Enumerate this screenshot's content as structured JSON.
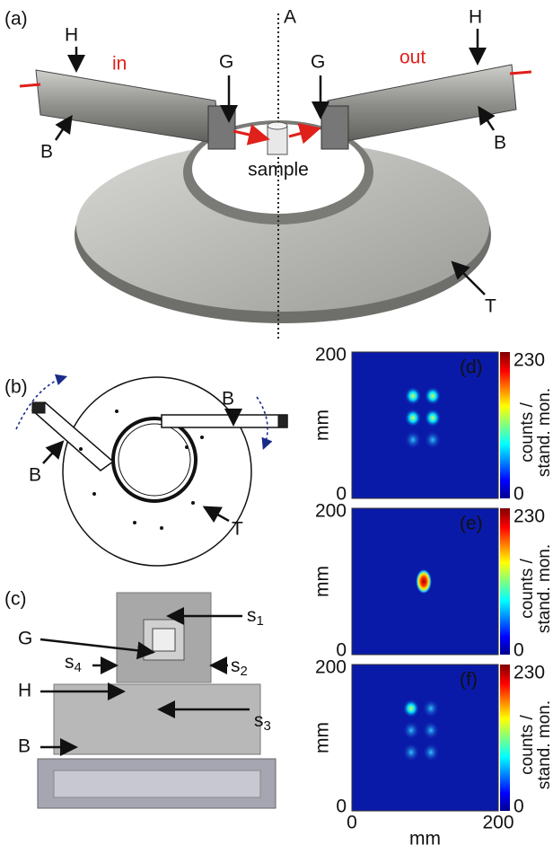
{
  "panel_a": {
    "label": "(a)",
    "labels": [
      "H",
      "in",
      "G",
      "A",
      "G",
      "out",
      "H",
      "B",
      "B",
      "sample",
      "T"
    ]
  },
  "panel_b": {
    "label": "(b)",
    "labels": [
      "B",
      "B",
      "T"
    ]
  },
  "panel_c": {
    "label": "(c)",
    "labels": [
      "G",
      {
        "text": "s",
        "sub": "1"
      },
      {
        "text": "s",
        "sub": "4"
      },
      {
        "text": "s",
        "sub": "2"
      },
      "H",
      {
        "text": "s",
        "sub": "3"
      },
      "B"
    ]
  },
  "heatmaps": {
    "panels": [
      {
        "label": "(d)",
        "y_ticks": [
          "200",
          "0"
        ],
        "y_label": "mm",
        "colorbar_ticks": [
          "230",
          "0"
        ],
        "colorbar_label": [
          "counts /",
          "stand. mon."
        ]
      },
      {
        "label": "(e)",
        "y_ticks": [
          "200",
          "0"
        ],
        "y_label": "mm",
        "colorbar_ticks": [
          "230",
          "0"
        ],
        "colorbar_label": [
          "counts /",
          "stand. mon."
        ]
      },
      {
        "label": "(f)",
        "y_ticks": [
          "200",
          "0"
        ],
        "y_label": "mm",
        "colorbar_ticks": [
          "230",
          "0"
        ],
        "colorbar_label": [
          "counts /",
          "stand. mon."
        ]
      }
    ],
    "x_ticks": [
      "0",
      "200"
    ],
    "x_label": "mm"
  }
}
